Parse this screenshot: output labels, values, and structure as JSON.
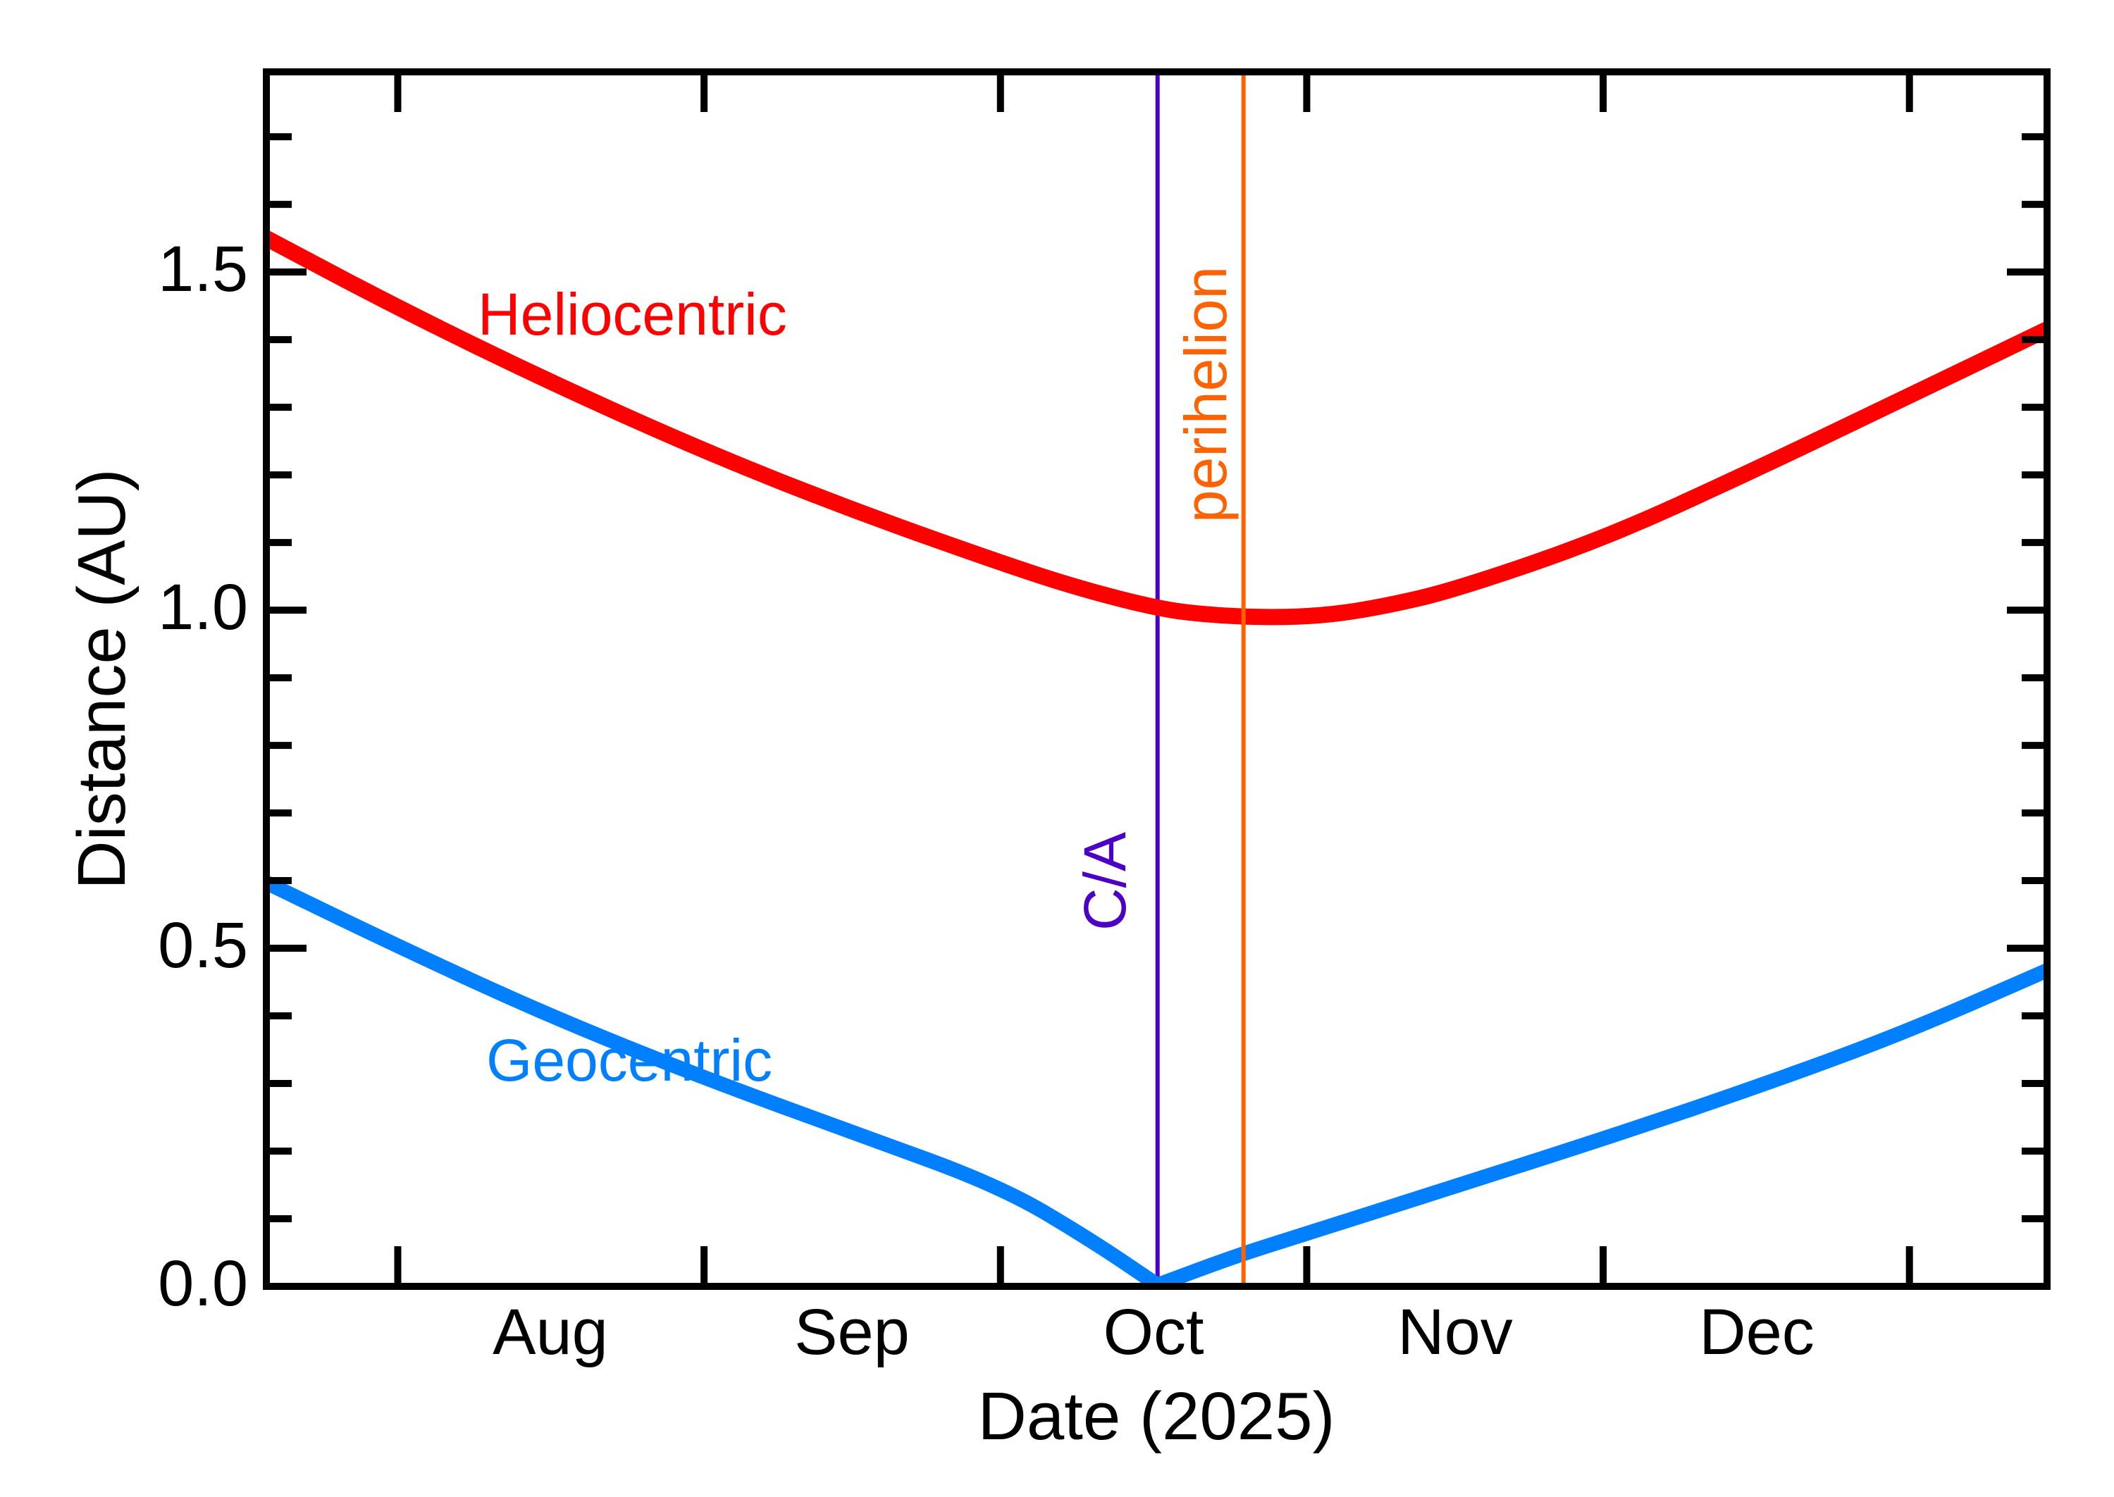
{
  "figure": {
    "xlabel": "Date (2025)",
    "ylabel": "Distance (AU)"
  },
  "chart_data": {
    "type": "line",
    "title": "",
    "xlabel": "Date (2025)",
    "ylabel": "Distance (AU)",
    "x_unit": "days from Aug 1, 2025",
    "x_range_dates": "mid-July 2025 to mid-January 2026",
    "xlim_days": [
      -13.3,
      166.93
    ],
    "ylim": [
      0,
      1.796
    ],
    "grid": false,
    "legend_position": "inline-curve-labels",
    "x_month_tick_days": [
      0,
      31,
      61,
      92,
      122,
      153
    ],
    "x_month_labels": [
      "Aug",
      "Sep",
      "Oct",
      "Nov",
      "Dec"
    ],
    "x_month_label_days": [
      15.5,
      46,
      76.5,
      107,
      137.5
    ],
    "y_major_ticks": [
      0,
      0.5,
      1.0,
      1.5
    ],
    "y_tick_labels": [
      "0.0",
      "0.5",
      "1.0",
      "1.5"
    ],
    "y_minor_step": 0.1,
    "axis_color": "#000000",
    "series": [
      {
        "name": "Heliocentric",
        "color": "#ff0000",
        "stroke_px": 23,
        "x_days": [
          -13.3,
          0,
          15,
          31,
          46,
          61,
          69,
          77,
          82,
          88,
          94,
          100,
          107,
          122,
          137,
          152,
          166.9
        ],
        "values": [
          1.55,
          1.447,
          1.34,
          1.235,
          1.148,
          1.07,
          1.032,
          1.002,
          0.993,
          0.989,
          0.992,
          1.006,
          1.03,
          1.105,
          1.205,
          1.31,
          1.415
        ]
      },
      {
        "name": "Geocentric",
        "color": "#0080ff",
        "stroke_px": 21,
        "sharp_vertex_day": 76.9,
        "x_days": [
          -13.3,
          0,
          15,
          31,
          46,
          61,
          70,
          76.9,
          85,
          92,
          107,
          122,
          137,
          152,
          166.9
        ],
        "values": [
          0.597,
          0.503,
          0.402,
          0.308,
          0.228,
          0.148,
          0.07,
          0.002,
          0.046,
          0.078,
          0.148,
          0.218,
          0.292,
          0.372,
          0.467
        ]
      }
    ],
    "annotations": [
      {
        "label": "C/A",
        "type": "vline",
        "x_day": 76.9,
        "date": "Oct 17",
        "color": "#4c00c4"
      },
      {
        "label": "perihelion",
        "type": "vline",
        "x_day": 85.6,
        "date": "Oct 26",
        "color": "#ff6200"
      }
    ]
  }
}
